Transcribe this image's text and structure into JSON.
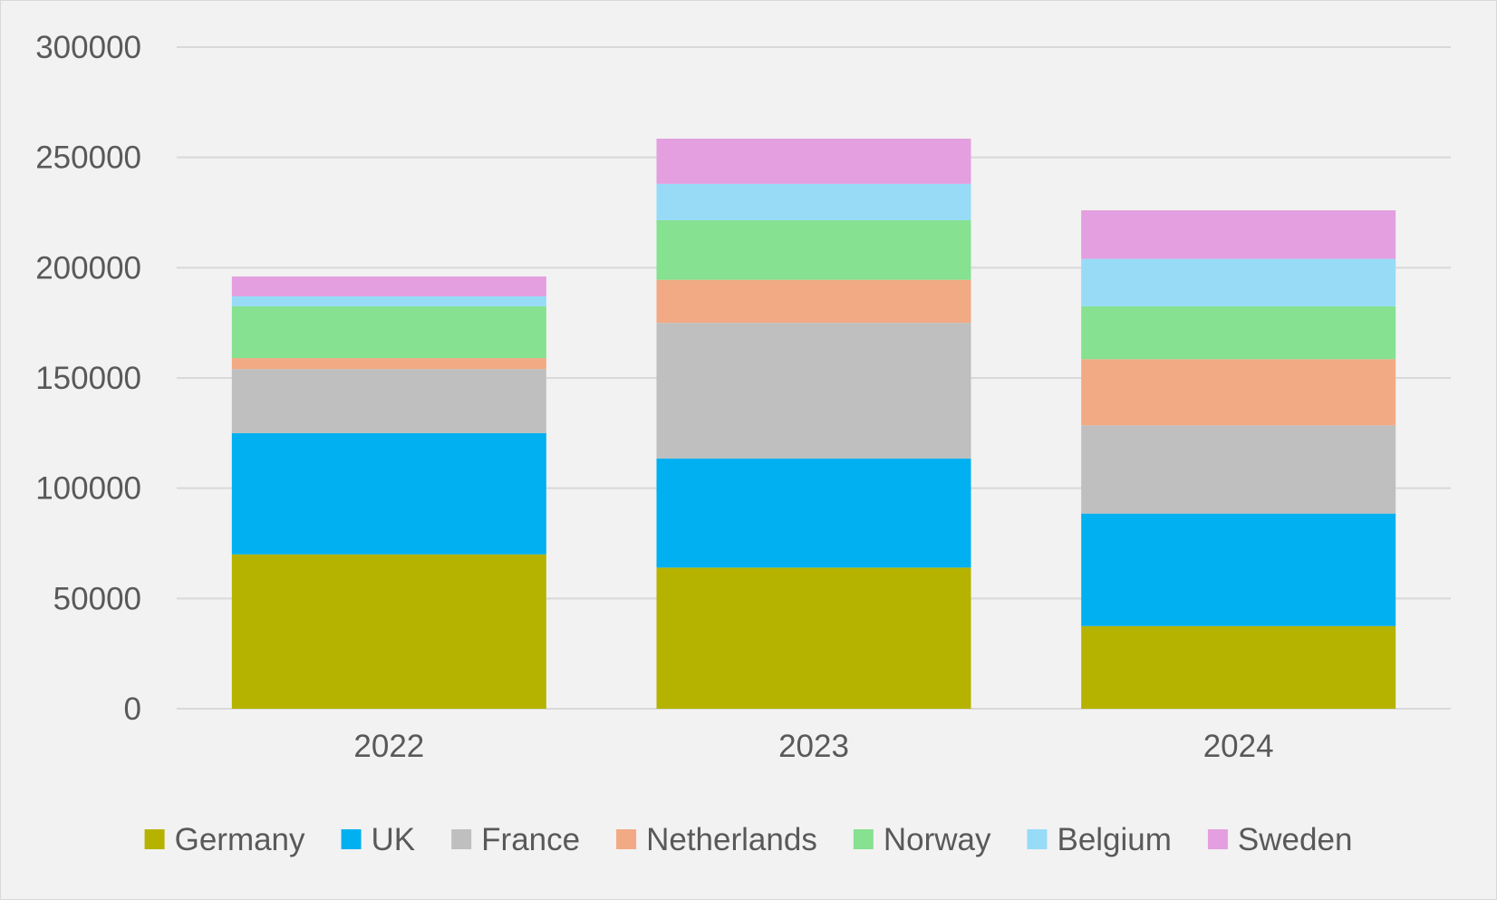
{
  "chart_data": {
    "type": "bar",
    "stacked": true,
    "title": "",
    "xlabel": "",
    "ylabel": "",
    "categories": [
      "2022",
      "2023",
      "2024"
    ],
    "ylim": [
      0,
      300000
    ],
    "yticks": [
      0,
      50000,
      100000,
      150000,
      200000,
      250000,
      300000
    ],
    "ytick_labels": [
      "0",
      "50000",
      "100000",
      "150000",
      "200000",
      "250000",
      "300000"
    ],
    "grid": true,
    "legend_position": "bottom",
    "series": [
      {
        "name": "Germany",
        "color": "#b5b300",
        "values": [
          70000,
          64000,
          37500
        ]
      },
      {
        "name": "UK",
        "color": "#00b0f0",
        "values": [
          55000,
          49500,
          51000
        ]
      },
      {
        "name": "France",
        "color": "#bfbfbf",
        "values": [
          29000,
          61500,
          40000
        ]
      },
      {
        "name": "Netherlands",
        "color": "#f2aa84",
        "values": [
          5000,
          19500,
          30000
        ]
      },
      {
        "name": "Norway",
        "color": "#86e190",
        "values": [
          23500,
          27000,
          24000
        ]
      },
      {
        "name": "Belgium",
        "color": "#97dbf7",
        "values": [
          4500,
          16500,
          21500
        ]
      },
      {
        "name": "Sweden",
        "color": "#e39fdf",
        "values": [
          9000,
          20500,
          22000
        ]
      }
    ],
    "colors": {
      "background": "#f2f2f2",
      "gridline": "#d9d9d9",
      "text": "#595959"
    }
  }
}
